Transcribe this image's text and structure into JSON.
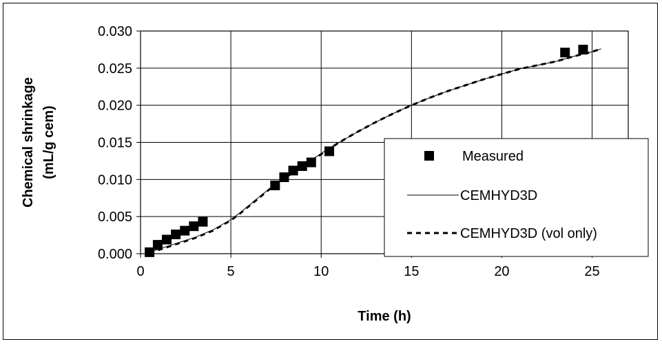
{
  "chart_data": {
    "type": "scatter",
    "xlabel": "Time (h)",
    "ylabel_lines": [
      "Chemical shrinkage",
      "(mL/g cem)"
    ],
    "xlim": [
      0,
      27
    ],
    "ylim": [
      0,
      0.03
    ],
    "x_ticks": [
      0,
      5,
      10,
      15,
      20,
      25
    ],
    "x_tick_labels": [
      "0",
      "5",
      "10",
      "15",
      "20",
      "25"
    ],
    "y_ticks": [
      0,
      0.005,
      0.01,
      0.015,
      0.02,
      0.025,
      0.03
    ],
    "y_tick_labels": [
      "0.000",
      "0.005",
      "0.010",
      "0.015",
      "0.020",
      "0.025",
      "0.030"
    ],
    "grid": true,
    "legend_position": "right",
    "series": [
      {
        "name": "Measured",
        "kind": "marker",
        "x": [
          0.5,
          0.95,
          1.45,
          1.95,
          2.45,
          2.95,
          3.45,
          7.45,
          7.95,
          8.45,
          8.95,
          9.45,
          10.45,
          23.5,
          24.5
        ],
        "y": [
          0.0002,
          0.0012,
          0.0019,
          0.0026,
          0.0031,
          0.0037,
          0.0043,
          0.0092,
          0.0103,
          0.0112,
          0.0118,
          0.0123,
          0.0138,
          0.0271,
          0.0275
        ]
      },
      {
        "name": "CEMHYD3D",
        "kind": "solid",
        "x": [
          0.5,
          1,
          1.5,
          2,
          2.5,
          3,
          3.5,
          4,
          4.5,
          5,
          5.5,
          6,
          6.5,
          7,
          7.5,
          8,
          8.5,
          9,
          9.5,
          10,
          10.5,
          11,
          12,
          13,
          14,
          15,
          16,
          17,
          18,
          19,
          20,
          21,
          22,
          23,
          24,
          25,
          25.5
        ],
        "y": [
          0.0002,
          0.0006,
          0.001,
          0.0014,
          0.0018,
          0.0022,
          0.0027,
          0.0032,
          0.0039,
          0.0046,
          0.0055,
          0.0065,
          0.0075,
          0.0085,
          0.0095,
          0.0103,
          0.0111,
          0.0119,
          0.0127,
          0.0135,
          0.0143,
          0.015,
          0.0164,
          0.0177,
          0.0189,
          0.02,
          0.021,
          0.0219,
          0.0227,
          0.0235,
          0.0242,
          0.0249,
          0.0254,
          0.0259,
          0.0266,
          0.0272,
          0.0276
        ]
      },
      {
        "name": "CEMHYD3D (vol only)",
        "kind": "dashed",
        "x": [
          0.5,
          1,
          1.5,
          2,
          2.5,
          3,
          3.5,
          4,
          4.5,
          5,
          5.5,
          6,
          6.5,
          7,
          7.5,
          8,
          8.5,
          9,
          9.5,
          10,
          10.5,
          11,
          12,
          13,
          14,
          15,
          16,
          17,
          18,
          19,
          20,
          21,
          22,
          23,
          24,
          25,
          25.5
        ],
        "y": [
          0.0001,
          0.0005,
          0.0009,
          0.0013,
          0.0017,
          0.0021,
          0.0026,
          0.0031,
          0.0038,
          0.0045,
          0.0054,
          0.0064,
          0.0074,
          0.0084,
          0.0094,
          0.0102,
          0.011,
          0.0118,
          0.0126,
          0.0134,
          0.0142,
          0.015,
          0.0164,
          0.0177,
          0.0189,
          0.02,
          0.021,
          0.0219,
          0.0227,
          0.0235,
          0.0242,
          0.0249,
          0.0254,
          0.0259,
          0.0266,
          0.0272,
          0.0276
        ]
      }
    ]
  }
}
